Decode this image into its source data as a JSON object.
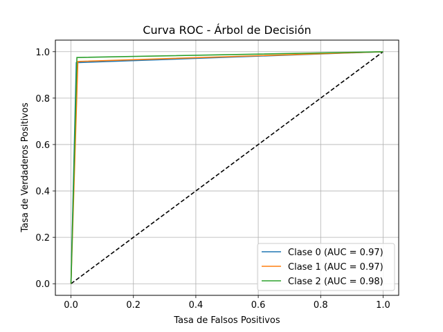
{
  "chart_data": {
    "type": "line",
    "title": "Curva ROC - Árbol de Decisión",
    "xlabel": "Tasa de Falsos Positivos",
    "ylabel": "Tasa de Verdaderos Positivos",
    "xlim": [
      -0.05,
      1.05
    ],
    "ylim": [
      -0.05,
      1.05
    ],
    "xticks": [
      "0.0",
      "0.2",
      "0.4",
      "0.6",
      "0.8",
      "1.0"
    ],
    "yticks": [
      "0.0",
      "0.2",
      "0.4",
      "0.6",
      "0.8",
      "1.0"
    ],
    "grid": true,
    "legend_position": "lower-right",
    "series": [
      {
        "name": "Clase 0 (AUC = 0.97)",
        "color": "#1f77b4",
        "x": [
          0.0,
          0.017,
          1.0
        ],
        "y": [
          0.0,
          0.953,
          1.0
        ]
      },
      {
        "name": "Clase 1 (AUC = 0.97)",
        "color": "#ff7f0e",
        "x": [
          0.0,
          0.022,
          1.0
        ],
        "y": [
          0.0,
          0.958,
          1.0
        ]
      },
      {
        "name": "Clase 2 (AUC = 0.98)",
        "color": "#2ca02c",
        "x": [
          0.0,
          0.019,
          1.0
        ],
        "y": [
          0.0,
          0.975,
          1.0
        ]
      }
    ],
    "reference_line": {
      "x": [
        0,
        1
      ],
      "y": [
        0,
        1
      ],
      "color": "#000000",
      "style": "dashed"
    }
  }
}
